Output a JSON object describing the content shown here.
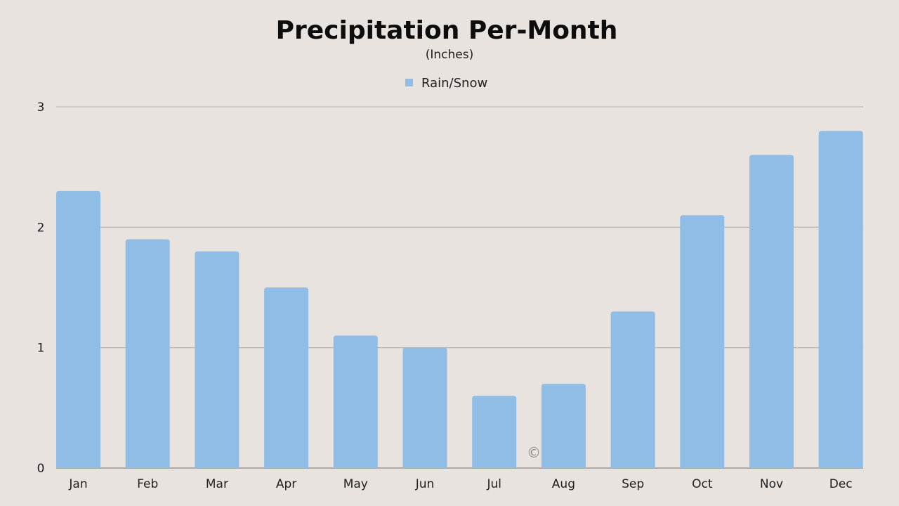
{
  "chart_data": {
    "type": "bar",
    "title": "Precipitation Per-Month",
    "subtitle": "(Inches)",
    "legend": {
      "position": "top-center",
      "entries": [
        "Rain/Snow"
      ]
    },
    "categories": [
      "Jan",
      "Feb",
      "Mar",
      "Apr",
      "May",
      "Jun",
      "Jul",
      "Aug",
      "Sep",
      "Oct",
      "Nov",
      "Dec"
    ],
    "series": [
      {
        "name": "Rain/Snow",
        "color": "#8fbde6",
        "values": [
          2.3,
          1.9,
          1.8,
          1.5,
          1.1,
          1.0,
          0.6,
          0.7,
          1.3,
          2.1,
          2.6,
          2.8
        ]
      }
    ],
    "ylim": [
      0,
      3
    ],
    "yticks": [
      "0",
      "1",
      "2",
      "3"
    ],
    "grid": true,
    "xlabel": "",
    "ylabel": "",
    "watermark": "©"
  }
}
